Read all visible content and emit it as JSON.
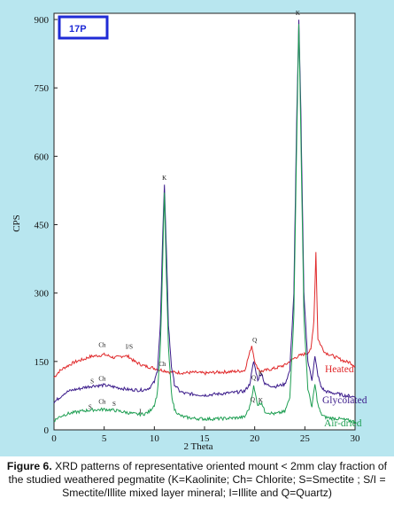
{
  "sample_label": "17P",
  "caption": {
    "figure_label": "Figure 6.",
    "text": " XRD patterns of representative oriented mount < 2mm clay fraction of the studied weathered pegmatite (K=Kaolinite; Ch= Chlorite; S=Smectite ; S/I = Smectite/Illite mixed layer mineral; I=Illite and Q=Quartz)"
  },
  "chart_data": {
    "type": "line",
    "title": "",
    "xlabel": "2 Theta",
    "ylabel": "CPS",
    "xlim": [
      0,
      30
    ],
    "ylim": [
      0,
      900
    ],
    "x_ticks": [
      0,
      5,
      10,
      15,
      20,
      25,
      30
    ],
    "y_ticks": [
      0,
      150,
      300,
      450,
      600,
      750,
      900
    ],
    "grid": false,
    "legend": "inline labels at right",
    "series": [
      {
        "name": "Heated",
        "color": "#e0282a",
        "x": [
          0,
          0.5,
          1,
          1.5,
          2,
          2.5,
          3,
          3.5,
          4,
          4.5,
          5,
          5.5,
          6,
          6.5,
          7,
          7.5,
          8,
          8.5,
          9,
          9.5,
          10,
          10.5,
          11,
          11.5,
          12,
          13,
          14,
          15,
          16,
          17,
          18,
          19,
          19.7,
          20.1,
          20.6,
          21,
          22,
          23,
          23.5,
          24,
          24.4,
          24.8,
          25.2,
          25.6,
          25.9,
          26.1,
          26.3,
          26.6,
          27,
          27.5,
          28,
          28.5,
          29,
          29.5,
          30
        ],
        "values": [
          115,
          128,
          136,
          142,
          148,
          152,
          155,
          160,
          162,
          163,
          165,
          162,
          158,
          160,
          163,
          160,
          150,
          145,
          140,
          138,
          135,
          132,
          130,
          127,
          126,
          125,
          126,
          124,
          126,
          127,
          128,
          130,
          185,
          142,
          128,
          130,
          135,
          142,
          150,
          158,
          162,
          165,
          168,
          175,
          240,
          390,
          200,
          185,
          170,
          165,
          160,
          155,
          150,
          148,
          140
        ]
      },
      {
        "name": "Glycolated",
        "color": "#3a1a8a",
        "x": [
          0,
          0.5,
          1,
          1.5,
          2,
          2.5,
          3,
          3.5,
          4,
          4.5,
          5,
          5.5,
          6,
          6.5,
          7,
          7.5,
          8,
          8.5,
          9,
          9.5,
          10,
          10.3,
          10.6,
          10.8,
          11,
          11.2,
          11.4,
          11.7,
          12,
          12.5,
          13,
          14,
          15,
          16,
          17,
          18,
          19,
          19.5,
          19.9,
          20.3,
          20.7,
          21,
          22,
          23,
          23.5,
          23.9,
          24.2,
          24.4,
          24.6,
          24.9,
          25.3,
          25.7,
          26,
          26.3,
          26.6,
          27,
          27.5,
          28,
          28.5,
          29,
          29.5,
          30
        ],
        "values": [
          60,
          70,
          80,
          85,
          88,
          90,
          93,
          95,
          97,
          97,
          98,
          96,
          94,
          92,
          90,
          88,
          88,
          87,
          88,
          92,
          105,
          130,
          230,
          400,
          535,
          400,
          230,
          140,
          100,
          85,
          80,
          78,
          76,
          78,
          80,
          82,
          85,
          100,
          150,
          110,
          125,
          100,
          95,
          100,
          130,
          300,
          700,
          898,
          700,
          300,
          150,
          110,
          160,
          120,
          95,
          85,
          82,
          80,
          78,
          75,
          74,
          72
        ]
      },
      {
        "name": "Air-dried",
        "color": "#1e9e52",
        "x": [
          0,
          0.5,
          1,
          1.5,
          2,
          2.5,
          3,
          3.5,
          4,
          4.5,
          5,
          5.5,
          6,
          6.5,
          7,
          7.5,
          8,
          8.5,
          9,
          9.5,
          10,
          10.3,
          10.6,
          10.8,
          11,
          11.2,
          11.4,
          11.7,
          12,
          12.5,
          13,
          14,
          15,
          16,
          17,
          18,
          19,
          19.5,
          19.9,
          20.3,
          20.7,
          21,
          22,
          23,
          23.5,
          23.9,
          24.2,
          24.4,
          24.6,
          24.9,
          25.3,
          25.7,
          26,
          26.3,
          26.6,
          27,
          27.5,
          28,
          28.5,
          29,
          29.5,
          30
        ],
        "values": [
          20,
          28,
          33,
          36,
          38,
          40,
          42,
          43,
          44,
          44,
          45,
          44,
          43,
          41,
          39,
          37,
          35,
          34,
          35,
          40,
          55,
          80,
          180,
          340,
          520,
          340,
          180,
          80,
          45,
          32,
          28,
          25,
          24,
          24,
          25,
          26,
          28,
          50,
          95,
          55,
          60,
          40,
          35,
          40,
          70,
          250,
          650,
          890,
          650,
          250,
          90,
          50,
          100,
          55,
          35,
          28,
          26,
          25,
          24,
          22,
          20,
          18
        ]
      }
    ],
    "peak_labels": [
      {
        "text": "Ch",
        "x": 4.8,
        "y": 182
      },
      {
        "text": "I/S",
        "x": 7.5,
        "y": 178
      },
      {
        "text": "S",
        "x": 3.8,
        "y": 102
      },
      {
        "text": "Ch",
        "x": 4.8,
        "y": 108
      },
      {
        "text": "Ch",
        "x": 10.8,
        "y": 140
      },
      {
        "text": "Ch",
        "x": 4.8,
        "y": 57
      },
      {
        "text": "S",
        "x": 3.6,
        "y": 46
      },
      {
        "text": "S",
        "x": 6.0,
        "y": 52
      },
      {
        "text": "I",
        "x": 8.6,
        "y": 36
      },
      {
        "text": "K",
        "x": 11.0,
        "y": 548
      },
      {
        "text": "Q",
        "x": 20.0,
        "y": 192
      },
      {
        "text": "Q",
        "x": 19.9,
        "y": 110
      },
      {
        "text": "K",
        "x": 20.6,
        "y": 120
      },
      {
        "text": "Q",
        "x": 19.8,
        "y": 62
      },
      {
        "text": "K",
        "x": 20.6,
        "y": 60
      },
      {
        "text": "K",
        "x": 24.3,
        "y": 910
      }
    ]
  }
}
